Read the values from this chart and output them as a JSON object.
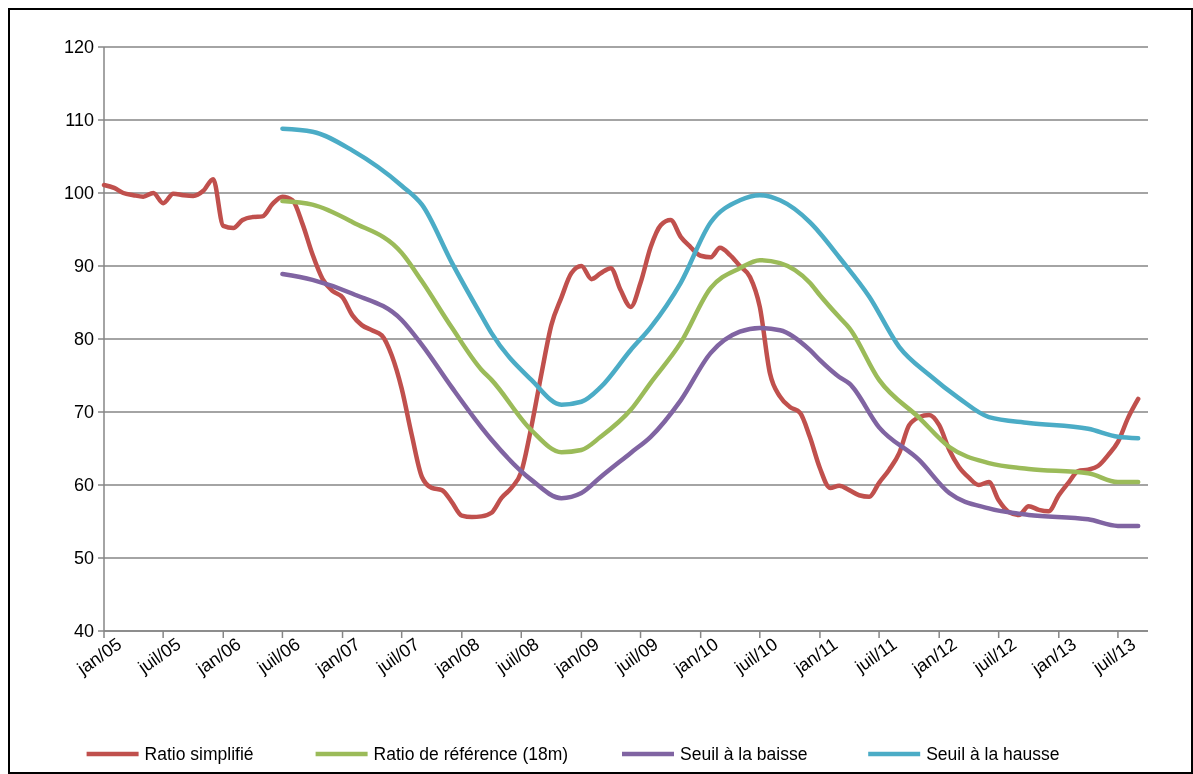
{
  "chart_data": {
    "type": "line",
    "x": [
      "2005-01",
      "2005-02",
      "2005-03",
      "2005-04",
      "2005-05",
      "2005-06",
      "2005-07",
      "2005-08",
      "2005-09",
      "2005-10",
      "2005-11",
      "2005-12",
      "2006-01",
      "2006-02",
      "2006-03",
      "2006-04",
      "2006-05",
      "2006-06",
      "2006-07",
      "2006-08",
      "2006-09",
      "2006-10",
      "2006-11",
      "2006-12",
      "2007-01",
      "2007-02",
      "2007-03",
      "2007-04",
      "2007-05",
      "2007-06",
      "2007-07",
      "2007-08",
      "2007-09",
      "2007-10",
      "2007-11",
      "2007-12",
      "2008-01",
      "2008-02",
      "2008-03",
      "2008-04",
      "2008-05",
      "2008-06",
      "2008-07",
      "2008-08",
      "2008-09",
      "2008-10",
      "2008-11",
      "2008-12",
      "2009-01",
      "2009-02",
      "2009-03",
      "2009-04",
      "2009-05",
      "2009-06",
      "2009-07",
      "2009-08",
      "2009-09",
      "2009-10",
      "2009-11",
      "2009-12",
      "2010-01",
      "2010-02",
      "2010-03",
      "2010-04",
      "2010-05",
      "2010-06",
      "2010-07",
      "2010-08",
      "2010-09",
      "2010-10",
      "2010-11",
      "2010-12",
      "2011-01",
      "2011-02",
      "2011-03",
      "2011-04",
      "2011-05",
      "2011-06",
      "2011-07",
      "2011-08",
      "2011-09",
      "2011-10",
      "2011-11",
      "2011-12",
      "2012-01",
      "2012-02",
      "2012-03",
      "2012-04",
      "2012-05",
      "2012-06",
      "2012-07",
      "2012-08",
      "2012-09",
      "2012-10",
      "2012-11",
      "2012-12",
      "2013-01",
      "2013-02",
      "2013-03",
      "2013-04",
      "2013-05",
      "2013-06",
      "2013-07",
      "2013-08",
      "2013-09"
    ],
    "series": [
      {
        "name": "Ratio simplifié",
        "color": "#c0504d",
        "values": [
          101.1,
          100.7,
          100.0,
          99.7,
          99.5,
          100.0,
          98.6,
          99.9,
          99.7,
          99.6,
          100.3,
          101.9,
          95.5,
          95.2,
          96.3,
          96.7,
          96.8,
          98.5,
          99.5,
          99.0,
          95.7,
          91.6,
          88.2,
          86.6,
          85.7,
          83.2,
          81.9,
          81.2,
          80.5,
          77.7,
          73.2,
          66.8,
          61.1,
          59.6,
          59.3,
          57.7,
          55.8,
          55.6,
          55.7,
          56.2,
          58.2,
          59.6,
          61.8,
          68.0,
          75.3,
          81.9,
          85.7,
          89.0,
          90.0,
          88.2,
          89.0,
          89.7,
          86.7,
          84.4,
          87.7,
          92.6,
          95.6,
          96.3,
          94.0,
          92.6,
          91.4,
          91.2,
          92.5,
          91.5,
          90.0,
          88.5,
          84.4,
          75.3,
          72.1,
          70.7,
          69.9,
          66.6,
          62.3,
          59.6,
          59.9,
          59.3,
          58.6,
          58.4,
          60.3,
          62.1,
          64.4,
          68.2,
          69.3,
          69.6,
          68.2,
          64.8,
          62.5,
          61.0,
          60.0,
          60.4,
          57.9,
          56.3,
          55.9,
          57.1,
          56.6,
          56.4,
          58.6,
          60.4,
          61.9,
          62.1,
          62.6,
          64.1,
          65.9,
          69.2,
          71.8
        ]
      },
      {
        "name": "Ratio de référence (18m)",
        "color": "#9bbb59",
        "x": [
          "2006-07",
          "2006-10",
          "2007-02",
          "2007-07",
          "2007-09",
          "2007-12",
          "2008-03",
          "2008-04",
          "2008-08",
          "2008-11",
          "2009-01",
          "2009-03",
          "2009-06",
          "2009-08",
          "2009-11",
          "2010-02",
          "2010-05",
          "2010-07",
          "2010-09",
          "2010-12",
          "2011-01",
          "2011-03",
          "2011-04",
          "2011-07",
          "2011-11",
          "2012-02",
          "2012-06",
          "2012-10",
          "2013-04",
          "2013-07",
          "2013-09"
        ],
        "values": [
          98.9,
          98.4,
          96.0,
          91.8,
          87.9,
          81.6,
          75.8,
          74.4,
          67.5,
          64.5,
          64.8,
          66.6,
          70.3,
          74.0,
          79.5,
          87.0,
          89.7,
          90.8,
          90.4,
          87.7,
          86.0,
          83.0,
          81.5,
          74.4,
          69.2,
          65.2,
          63.0,
          62.2,
          61.6,
          60.4,
          60.4
        ]
      },
      {
        "name": "Seuil à la baisse",
        "color": "#8064a2",
        "x": [
          "2006-07",
          "2006-10",
          "2007-02",
          "2007-07",
          "2007-09",
          "2007-12",
          "2008-03",
          "2008-04",
          "2008-08",
          "2008-11",
          "2009-01",
          "2009-03",
          "2009-06",
          "2009-08",
          "2009-11",
          "2010-02",
          "2010-05",
          "2010-07",
          "2010-09",
          "2010-12",
          "2011-01",
          "2011-03",
          "2011-04",
          "2011-07",
          "2011-11",
          "2012-02",
          "2012-06",
          "2012-10",
          "2013-04",
          "2013-07",
          "2013-09"
        ],
        "values": [
          88.9,
          88.1,
          86.2,
          82.6,
          79.2,
          73.4,
          67.9,
          66.2,
          60.7,
          58.2,
          58.9,
          61.1,
          64.4,
          66.6,
          71.6,
          78.1,
          81.0,
          81.5,
          81.2,
          78.5,
          77.1,
          74.8,
          73.9,
          67.9,
          63.4,
          58.9,
          56.8,
          55.9,
          55.3,
          54.4,
          54.4
        ]
      },
      {
        "name": "Seuil à la hausse",
        "color": "#4bacc6",
        "x": [
          "2006-07",
          "2006-10",
          "2007-02",
          "2007-07",
          "2007-09",
          "2007-12",
          "2008-03",
          "2008-04",
          "2008-08",
          "2008-11",
          "2009-01",
          "2009-03",
          "2009-06",
          "2009-08",
          "2009-11",
          "2010-02",
          "2010-05",
          "2010-07",
          "2010-09",
          "2010-12",
          "2011-01",
          "2011-03",
          "2011-06",
          "2011-09",
          "2011-12",
          "2012-03",
          "2012-06",
          "2012-10",
          "2013-04",
          "2013-07",
          "2013-09"
        ],
        "values": [
          108.8,
          108.4,
          105.8,
          101.0,
          98.4,
          90.5,
          83.2,
          80.8,
          74.4,
          71.0,
          71.4,
          73.4,
          78.5,
          81.6,
          87.7,
          96.0,
          99.0,
          99.7,
          99.0,
          96.0,
          94.5,
          91.2,
          85.8,
          78.9,
          75.1,
          71.9,
          69.3,
          68.5,
          67.7,
          66.6,
          66.4
        ]
      }
    ],
    "xlim": [
      "2005-01",
      "2013-10"
    ],
    "xticks": [
      {
        "value": "2005-01",
        "label": "jan/05"
      },
      {
        "value": "2005-07",
        "label": "juil/05"
      },
      {
        "value": "2006-01",
        "label": "jan/06"
      },
      {
        "value": "2006-07",
        "label": "juil/06"
      },
      {
        "value": "2007-01",
        "label": "jan/07"
      },
      {
        "value": "2007-07",
        "label": "juil/07"
      },
      {
        "value": "2008-01",
        "label": "jan/08"
      },
      {
        "value": "2008-07",
        "label": "juil/08"
      },
      {
        "value": "2009-01",
        "label": "jan/09"
      },
      {
        "value": "2009-07",
        "label": "juil/09"
      },
      {
        "value": "2010-01",
        "label": "jan/10"
      },
      {
        "value": "2010-07",
        "label": "juil/10"
      },
      {
        "value": "2011-01",
        "label": "jan/11"
      },
      {
        "value": "2011-07",
        "label": "juil/11"
      },
      {
        "value": "2012-01",
        "label": "jan/12"
      },
      {
        "value": "2012-07",
        "label": "juil/12"
      },
      {
        "value": "2013-01",
        "label": "jan/13"
      },
      {
        "value": "2013-07",
        "label": "juil/13"
      }
    ],
    "ylim": [
      40,
      120
    ],
    "yticks": [
      40,
      50,
      60,
      70,
      80,
      90,
      100,
      110,
      120
    ],
    "grid": "y",
    "legend": "bottom",
    "marker": "none",
    "line_style": "solid"
  }
}
